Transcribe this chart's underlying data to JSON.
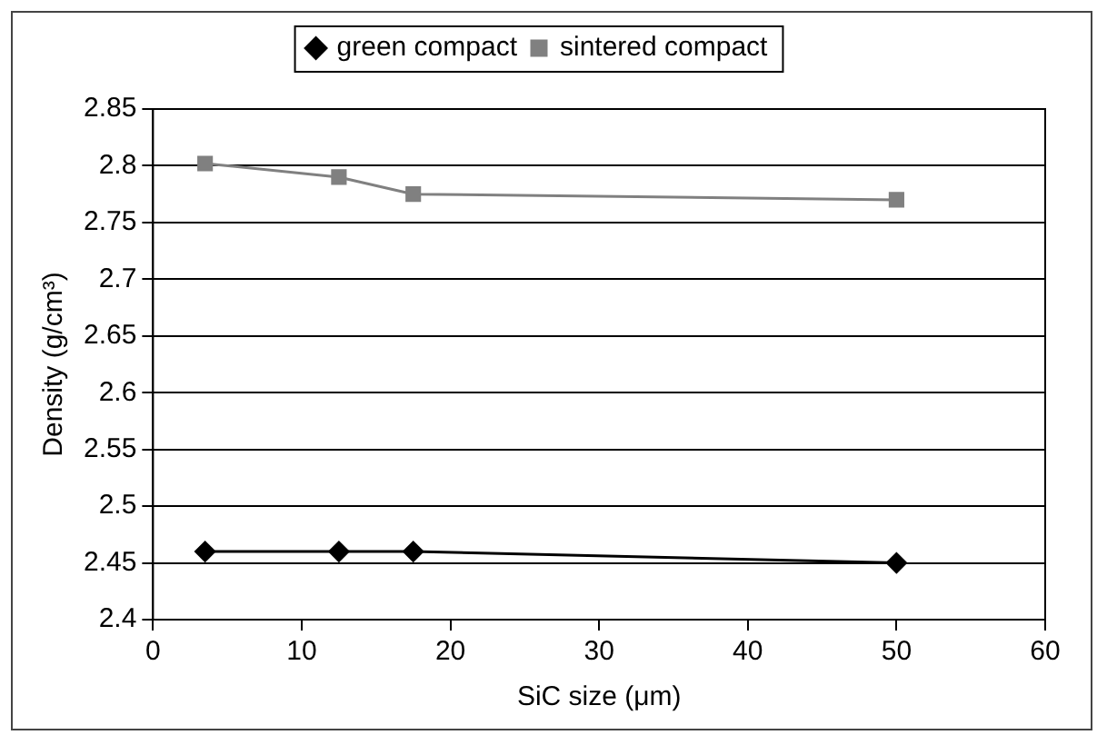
{
  "chart_data": {
    "type": "line",
    "xlabel": "SiC size (μm)",
    "ylabel": "Density (g/cm³)",
    "x": [
      3.5,
      12.5,
      17.5,
      50
    ],
    "series": [
      {
        "name": "green compact",
        "color": "#000000",
        "marker": "diamond",
        "values": [
          2.46,
          2.46,
          2.46,
          2.45
        ]
      },
      {
        "name": "sintered compact",
        "color": "#808080",
        "marker": "square",
        "values": [
          2.802,
          2.79,
          2.775,
          2.77
        ]
      }
    ],
    "xlim": [
      0,
      60
    ],
    "xticks": [
      0,
      10,
      20,
      30,
      40,
      50,
      60
    ],
    "ylim": [
      2.4,
      2.85
    ],
    "yticks": [
      2.4,
      2.45,
      2.5,
      2.55,
      2.6,
      2.65,
      2.7,
      2.75,
      2.8,
      2.85
    ],
    "grid": "y",
    "legend": "top",
    "line_style": "solid"
  }
}
